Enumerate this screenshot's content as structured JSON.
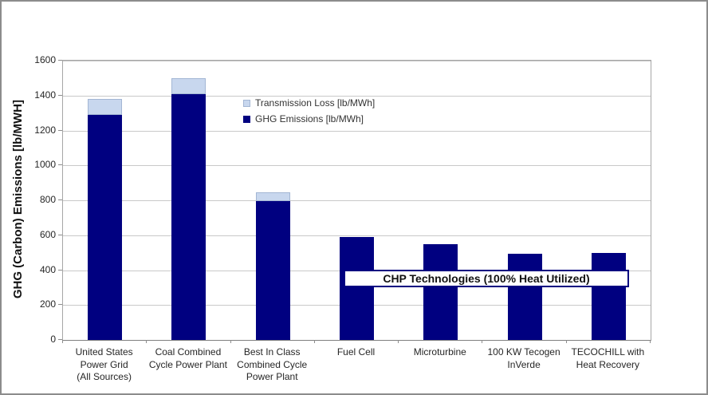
{
  "chart_data": {
    "type": "bar",
    "stacked": true,
    "title": "",
    "xlabel": "",
    "ylabel": "GHG (Carbon) Emissions [lb/MWH]",
    "ylim": [
      0,
      1600
    ],
    "ytick_step": 200,
    "grid": true,
    "legend_position": "inside-upper-left",
    "annotation": "CHP Technologies (100% Heat Utilized)",
    "categories": [
      "United States\nPower Grid\n(All Sources)",
      "Coal Combined\nCycle Power Plant",
      "Best In Class\nCombined Cycle\nPower Plant",
      "Fuel Cell",
      "Microturbine",
      "100 KW Tecogen\nInVerde",
      "TECOCHILL with\nHeat Recovery"
    ],
    "series": [
      {
        "name": "Transmission Loss [lb/MWh]",
        "color": "#c8d7ee",
        "border_color": "#a3b6d4",
        "values": [
          90,
          90,
          50,
          0,
          0,
          0,
          0
        ]
      },
      {
        "name": "GHG Emissions [lb/MWh]",
        "color": "#000080",
        "border_color": "#000080",
        "values": [
          1290,
          1410,
          795,
          590,
          550,
          495,
          500
        ]
      }
    ],
    "colors": {
      "gridline": "#c9c9c9",
      "plot_border": "#a6a6a6",
      "axis_line": "#808080",
      "text": "#262626"
    }
  }
}
